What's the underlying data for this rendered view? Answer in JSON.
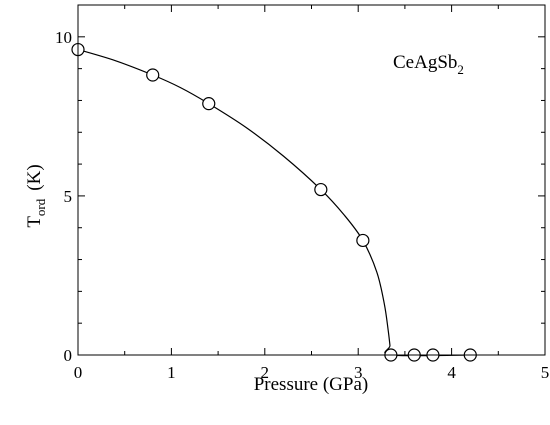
{
  "chart_data": {
    "type": "scatter",
    "annotation": "CeAgSb",
    "annotation_sub": "2",
    "xlabel": "Pressure (GPa)",
    "ylabel_main": "T",
    "ylabel_sub": "ord",
    "ylabel_unit": "(K)",
    "xlim": [
      0,
      5
    ],
    "ylim": [
      0,
      11
    ],
    "grid": false,
    "legend": "none",
    "x_ticks": [
      0,
      1,
      2,
      3,
      4,
      5
    ],
    "y_ticks": [
      0,
      5,
      10
    ],
    "series": [
      {
        "marker": "open-circle",
        "points": [
          {
            "x": 0.0,
            "y": 9.6
          },
          {
            "x": 0.8,
            "y": 8.8
          },
          {
            "x": 1.4,
            "y": 7.9
          },
          {
            "x": 2.6,
            "y": 5.2
          },
          {
            "x": 3.05,
            "y": 3.6
          },
          {
            "x": 3.35,
            "y": 0.0
          },
          {
            "x": 3.6,
            "y": 0.0
          },
          {
            "x": 3.8,
            "y": 0.0
          },
          {
            "x": 4.2,
            "y": 0.0
          }
        ]
      }
    ],
    "fit_curve": {
      "style": "solid",
      "points": [
        {
          "x": 0.0,
          "y": 9.6
        },
        {
          "x": 0.4,
          "y": 9.25
        },
        {
          "x": 0.8,
          "y": 8.8
        },
        {
          "x": 1.1,
          "y": 8.4
        },
        {
          "x": 1.4,
          "y": 7.9
        },
        {
          "x": 1.8,
          "y": 7.15
        },
        {
          "x": 2.2,
          "y": 6.25
        },
        {
          "x": 2.6,
          "y": 5.2
        },
        {
          "x": 2.85,
          "y": 4.4
        },
        {
          "x": 3.05,
          "y": 3.6
        },
        {
          "x": 3.2,
          "y": 2.6
        },
        {
          "x": 3.28,
          "y": 1.6
        },
        {
          "x": 3.32,
          "y": 0.8
        },
        {
          "x": 3.34,
          "y": 0.3
        },
        {
          "x": 3.35,
          "y": 0.0
        },
        {
          "x": 4.2,
          "y": 0.0
        }
      ]
    }
  }
}
